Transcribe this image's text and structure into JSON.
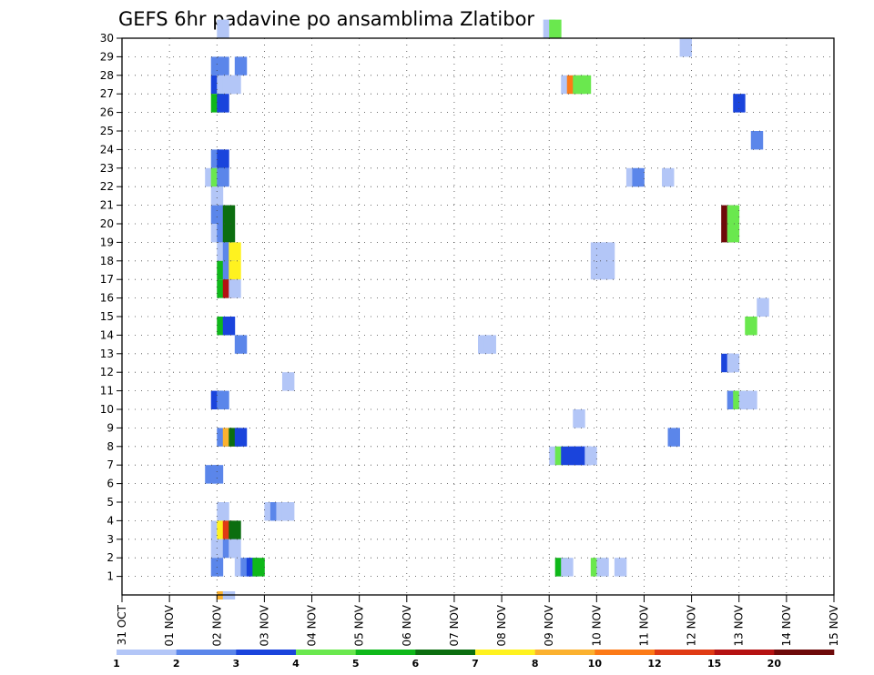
{
  "chart_data": {
    "type": "heatmap",
    "title": "GEFS 6hr padavine po ansamblima Zlatibor",
    "xlabel": "",
    "ylabel": "",
    "x_tick_labels": [
      "31 OCT",
      "01 NOV",
      "02 NOV",
      "03 NOV",
      "04 NOV",
      "05 NOV",
      "06 NOV",
      "07 NOV",
      "08 NOV",
      "09 NOV",
      "10 NOV",
      "11 NOV",
      "12 NOV",
      "13 NOV",
      "14 NOV",
      "15 NOV"
    ],
    "y_tick_labels": [
      "1",
      "2",
      "3",
      "4",
      "5",
      "6",
      "7",
      "8",
      "9",
      "10",
      "11",
      "12",
      "13",
      "14",
      "15",
      "16",
      "17",
      "18",
      "19",
      "20",
      "21",
      "22",
      "23",
      "24",
      "25",
      "26",
      "27",
      "28",
      "29",
      "30"
    ],
    "grid": true,
    "time_step_hours": 6,
    "value_units": "mm per 6h",
    "members": 30,
    "colorbar": {
      "levels": [
        "1",
        "2",
        "3",
        "4",
        "5",
        "6",
        "7",
        "8",
        "10",
        "12",
        "15",
        "20"
      ],
      "colors": [
        "#b3c6f7",
        "#5b86ea",
        "#1a44dc",
        "#6ae84e",
        "#0fb81a",
        "#0c6e10",
        "#fff21f",
        "#fbb12f",
        "#fc7a17",
        "#e03b14",
        "#b51212",
        "#6e0a0a"
      ]
    },
    "cells": [
      {
        "member": 30,
        "step": 16,
        "value": 1.5
      },
      {
        "member": 30,
        "step": 71,
        "value": 1.5
      },
      {
        "member": 30,
        "step": 72,
        "value": 4.5
      },
      {
        "member": 29,
        "step": 94,
        "value": 1.5
      },
      {
        "member": 28,
        "step": 15,
        "value": 2.5
      },
      {
        "member": 28,
        "step": 16,
        "value": 2.5
      },
      {
        "member": 28,
        "step": 19,
        "value": 2.5
      },
      {
        "member": 27,
        "step": 15,
        "value": 3.5
      },
      {
        "member": 27,
        "step": 16,
        "value": 1.5
      },
      {
        "member": 27,
        "step": 17,
        "value": 1.5
      },
      {
        "member": 27,
        "step": 18,
        "value": 1.5
      },
      {
        "member": 27,
        "step": 74,
        "value": 1.5
      },
      {
        "member": 27,
        "step": 75,
        "value": 11
      },
      {
        "member": 27,
        "step": 76,
        "value": 4.5
      },
      {
        "member": 27,
        "step": 77,
        "value": 4.5
      },
      {
        "member": 26,
        "step": 15,
        "value": 5.5
      },
      {
        "member": 26,
        "step": 16,
        "value": 3.5
      },
      {
        "member": 26,
        "step": 103,
        "value": 3.5
      },
      {
        "member": 24,
        "step": 106,
        "value": 2.5
      },
      {
        "member": 23,
        "step": 15,
        "value": 2.5
      },
      {
        "member": 23,
        "step": 16,
        "value": 3.5
      },
      {
        "member": 22,
        "step": 14,
        "value": 1.5
      },
      {
        "member": 22,
        "step": 15,
        "value": 4.5
      },
      {
        "member": 22,
        "step": 16,
        "value": 2.5
      },
      {
        "member": 22,
        "step": 85,
        "value": 1.5
      },
      {
        "member": 22,
        "step": 86,
        "value": 2.5
      },
      {
        "member": 22,
        "step": 91,
        "value": 1.5
      },
      {
        "member": 21,
        "step": 15,
        "value": 1.5
      },
      {
        "member": 20,
        "step": 15,
        "value": 2.5
      },
      {
        "member": 20,
        "step": 16,
        "value": 2.5
      },
      {
        "member": 20,
        "step": 17,
        "value": 6.5
      },
      {
        "member": 20,
        "step": 101,
        "value": 25
      },
      {
        "member": 20,
        "step": 102,
        "value": 4.5
      },
      {
        "member": 19,
        "step": 15,
        "value": 1.5
      },
      {
        "member": 19,
        "step": 16,
        "value": 2.5
      },
      {
        "member": 19,
        "step": 17,
        "value": 6.5
      },
      {
        "member": 19,
        "step": 101,
        "value": 25
      },
      {
        "member": 19,
        "step": 102,
        "value": 4.5
      },
      {
        "member": 18,
        "step": 16,
        "value": 1.5
      },
      {
        "member": 18,
        "step": 17,
        "value": 2.5
      },
      {
        "member": 18,
        "step": 18,
        "value": 7.5
      },
      {
        "member": 18,
        "step": 79,
        "value": 1.5
      },
      {
        "member": 18,
        "step": 80,
        "value": 1.5
      },
      {
        "member": 18,
        "step": 81,
        "value": 1.5
      },
      {
        "member": 17,
        "step": 16,
        "value": 5.5
      },
      {
        "member": 17,
        "step": 17,
        "value": 2.5
      },
      {
        "member": 17,
        "step": 18,
        "value": 7.5
      },
      {
        "member": 17,
        "step": 79,
        "value": 1.5
      },
      {
        "member": 17,
        "step": 80,
        "value": 1.5
      },
      {
        "member": 17,
        "step": 81,
        "value": 1.5
      },
      {
        "member": 16,
        "step": 16,
        "value": 5.5
      },
      {
        "member": 16,
        "step": 17,
        "value": 17
      },
      {
        "member": 16,
        "step": 18,
        "value": 1.5
      },
      {
        "member": 15,
        "step": 107,
        "value": 1.5
      },
      {
        "member": 14,
        "step": 16,
        "value": 5.5
      },
      {
        "member": 14,
        "step": 17,
        "value": 3.5
      },
      {
        "member": 14,
        "step": 105,
        "value": 4.5
      },
      {
        "member": 13,
        "step": 19,
        "value": 2.5
      },
      {
        "member": 13,
        "step": 60,
        "value": 1.5
      },
      {
        "member": 13,
        "step": 61,
        "value": 1.5
      },
      {
        "member": 12,
        "step": 101,
        "value": 3.5
      },
      {
        "member": 12,
        "step": 102,
        "value": 1.5
      },
      {
        "member": 11,
        "step": 27,
        "value": 1.5
      },
      {
        "member": 10,
        "step": 15,
        "value": 3.5
      },
      {
        "member": 10,
        "step": 16,
        "value": 2.5
      },
      {
        "member": 10,
        "step": 102,
        "value": 2.5
      },
      {
        "member": 10,
        "step": 103,
        "value": 4.5
      },
      {
        "member": 10,
        "step": 104,
        "value": 1.5
      },
      {
        "member": 10,
        "step": 105,
        "value": 1.5
      },
      {
        "member": 9,
        "step": 76,
        "value": 1.5
      },
      {
        "member": 8,
        "step": 16,
        "value": 2.5
      },
      {
        "member": 8,
        "step": 17,
        "value": 9
      },
      {
        "member": 8,
        "step": 18,
        "value": 6.5
      },
      {
        "member": 8,
        "step": 19,
        "value": 3.5
      },
      {
        "member": 8,
        "step": 92,
        "value": 2.5
      },
      {
        "member": 7,
        "step": 72,
        "value": 1.5
      },
      {
        "member": 7,
        "step": 73,
        "value": 4.5
      },
      {
        "member": 7,
        "step": 74,
        "value": 3.5
      },
      {
        "member": 7,
        "step": 75,
        "value": 3.5
      },
      {
        "member": 7,
        "step": 76,
        "value": 3.5
      },
      {
        "member": 7,
        "step": 77,
        "value": 3.5
      },
      {
        "member": 7,
        "step": 78,
        "value": 1.5
      },
      {
        "member": 6,
        "step": 14,
        "value": 2.5
      },
      {
        "member": 6,
        "step": 15,
        "value": 2.5
      },
      {
        "member": 4,
        "step": 16,
        "value": 1.5
      },
      {
        "member": 4,
        "step": 24,
        "value": 1.5
      },
      {
        "member": 4,
        "step": 25,
        "value": 2.5
      },
      {
        "member": 4,
        "step": 26,
        "value": 1.5
      },
      {
        "member": 4,
        "step": 27,
        "value": 1.5
      },
      {
        "member": 3,
        "step": 15,
        "value": 1.5
      },
      {
        "member": 3,
        "step": 16,
        "value": 7.5
      },
      {
        "member": 3,
        "step": 17,
        "value": 13
      },
      {
        "member": 3,
        "step": 18,
        "value": 6.5
      },
      {
        "member": 2,
        "step": 15,
        "value": 1.5
      },
      {
        "member": 2,
        "step": 16,
        "value": 1.5
      },
      {
        "member": 2,
        "step": 17,
        "value": 2.5
      },
      {
        "member": 2,
        "step": 18,
        "value": 1.5
      },
      {
        "member": 1,
        "step": 15,
        "value": 2.5
      },
      {
        "member": 1,
        "step": 19,
        "value": 1.5
      },
      {
        "member": 1,
        "step": 20,
        "value": 2.5
      },
      {
        "member": 1,
        "step": 21,
        "value": 3.5
      },
      {
        "member": 1,
        "step": 22,
        "value": 5.5
      },
      {
        "member": 1,
        "step": 73,
        "value": 5.5
      },
      {
        "member": 1,
        "step": 74,
        "value": 1.5
      },
      {
        "member": 1,
        "step": 79,
        "value": 4.5
      },
      {
        "member": 1,
        "step": 80,
        "value": 1.5
      },
      {
        "member": 1,
        "step": 83,
        "value": 1.5
      },
      {
        "member": 0,
        "step": 16,
        "value": 9
      },
      {
        "member": 0,
        "step": 17,
        "value": 1.5
      }
    ]
  }
}
